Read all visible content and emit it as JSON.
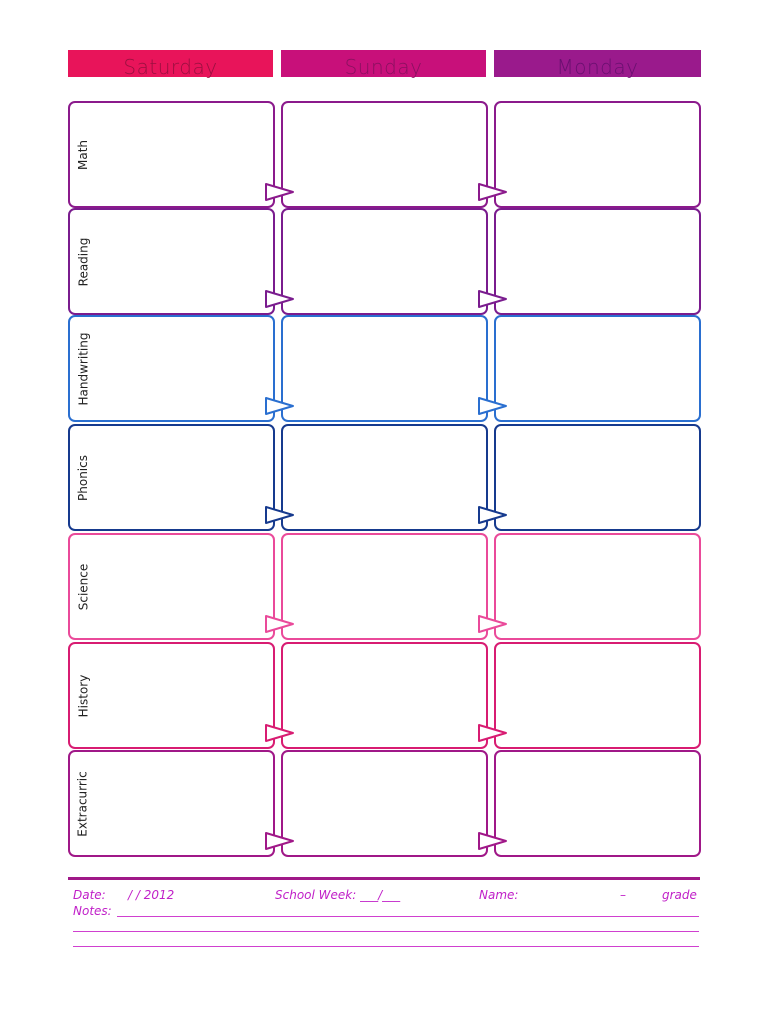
{
  "days": [
    {
      "label": "Saturday",
      "bg": "#e8145a",
      "text": "#9a1040"
    },
    {
      "label": "Sunday",
      "bg": "#c8107a",
      "text": "#8a1060"
    },
    {
      "label": "Monday",
      "bg": "#9a1a8c",
      "text": "#6a1070"
    }
  ],
  "subjects": [
    {
      "label": "Math",
      "color": "#8b1a8c"
    },
    {
      "label": "Reading",
      "color": "#7a1c8e"
    },
    {
      "label": "Handwriting",
      "color": "#2a6fd0"
    },
    {
      "label": "Phonics",
      "color": "#163a8e"
    },
    {
      "label": "Science",
      "color": "#ea4a9a"
    },
    {
      "label": "History",
      "color": "#d81c72"
    },
    {
      "label": "Extracurric",
      "color": "#a01888"
    }
  ],
  "footer": {
    "date_label": "Date:",
    "date_value": "/   / 2012",
    "school_week": "School Week: ___/___",
    "name_label": "Name:",
    "dash": "–",
    "grade": "grade",
    "notes_label": "Notes:",
    "rule_color": "#a01888",
    "text_color": "#c020c8"
  }
}
